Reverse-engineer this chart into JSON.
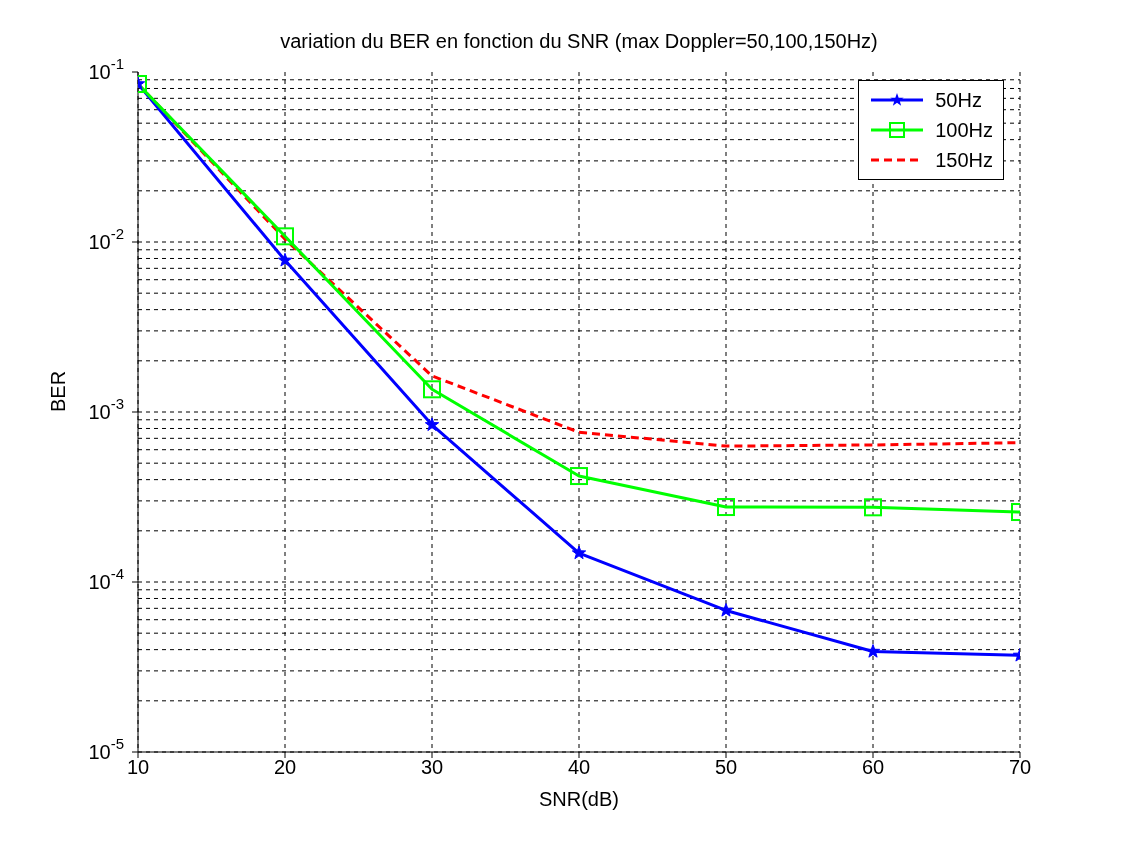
{
  "chart_data": {
    "type": "line",
    "title": "variation du BER en fonction du SNR (max Doppler=50,100,150Hz)",
    "xlabel": "SNR(dB)",
    "ylabel": "BER",
    "x": [
      10,
      20,
      30,
      40,
      50,
      60,
      70
    ],
    "log": "y",
    "xlim": [
      10,
      70
    ],
    "xticks": [
      10,
      20,
      30,
      40,
      50,
      60,
      70
    ],
    "ylim": [
      1e-05,
      0.1
    ],
    "yticks": [
      {
        "value": 1e-05,
        "label": "10$^{-5}$"
      },
      {
        "value": 0.0001,
        "label": "10$^{-4}$"
      },
      {
        "value": 0.001,
        "label": "10$^{-3}$"
      },
      {
        "value": 0.01,
        "label": "10$^{-2}$"
      },
      {
        "value": 0.1,
        "label": "10$^{-1}$"
      }
    ],
    "grid": true,
    "legend": "top right",
    "series": [
      {
        "name": "50Hz",
        "color": "#0000ff",
        "marker": "star",
        "line_style": "solid",
        "values": [
          0.085,
          0.0078,
          0.00084,
          0.000148,
          6.8e-05,
          3.9e-05,
          3.7e-05
        ]
      },
      {
        "name": "100Hz",
        "color": "#00ff00",
        "marker": "square",
        "line_style": "solid",
        "values": [
          0.085,
          0.0108,
          0.00136,
          0.00042,
          0.000276,
          0.000275,
          0.000258
        ]
      },
      {
        "name": "150Hz",
        "color": "#ff0000",
        "marker": "none",
        "line_style": "dashed",
        "values": [
          0.085,
          0.0104,
          0.00163,
          0.00076,
          0.00063,
          0.00064,
          0.00066
        ]
      }
    ]
  }
}
